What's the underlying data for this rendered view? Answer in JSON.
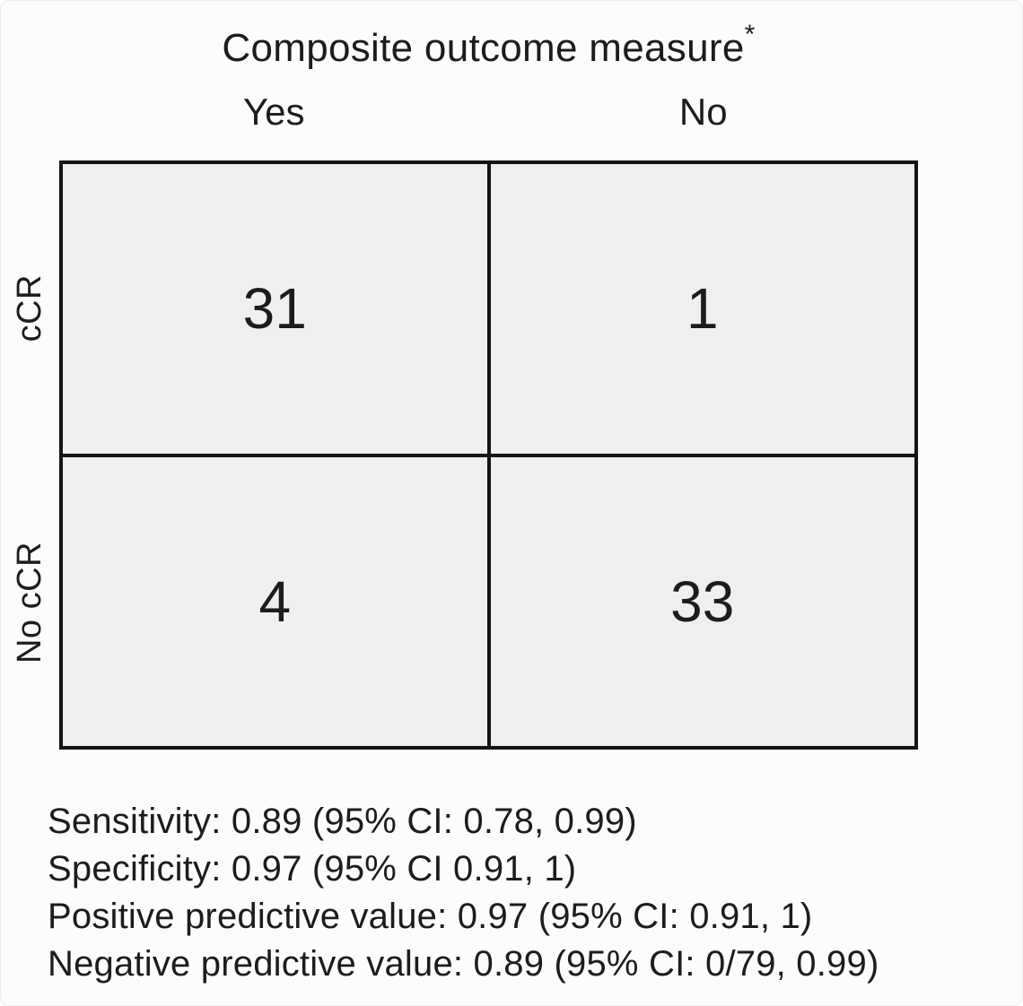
{
  "title": {
    "text": "Composite outcome measure",
    "superscript": "*"
  },
  "matrix": {
    "column_axis_headers": [
      "Yes",
      "No"
    ],
    "row_axis_headers": [
      "cCR",
      "No cCR"
    ],
    "cells": [
      [
        "31",
        "1"
      ],
      [
        "4",
        "33"
      ]
    ]
  },
  "stats": {
    "sensitivity": "Sensitivity: 0.89 (95% CI: 0.78, 0.99)",
    "specificity": "Specificity: 0.97 (95% CI 0.91, 1)",
    "ppv": "Positive predictive value: 0.97 (95% CI: 0.91, 1)",
    "npv": "Negative predictive value: 0.89 (95% CI: 0/79, 0.99)"
  },
  "chart_data": {
    "type": "table",
    "title": "Composite outcome measure*",
    "columns": [
      "Yes",
      "No"
    ],
    "rows": [
      "cCR",
      "No cCR"
    ],
    "values": [
      [
        31,
        1
      ],
      [
        4,
        33
      ]
    ],
    "annotations": [
      "Sensitivity: 0.89 (95% CI: 0.78, 0.99)",
      "Specificity: 0.97 (95% CI 0.91, 1)",
      "Positive predictive value: 0.97 (95% CI: 0.91, 1)",
      "Negative predictive value: 0.89 (95% CI: 0/79, 0.99)"
    ]
  },
  "colors": {
    "cell_background": "#edeff1",
    "grid_line": "#141414",
    "page_background": "#fbfcfd",
    "text": "#1c1c1c"
  }
}
